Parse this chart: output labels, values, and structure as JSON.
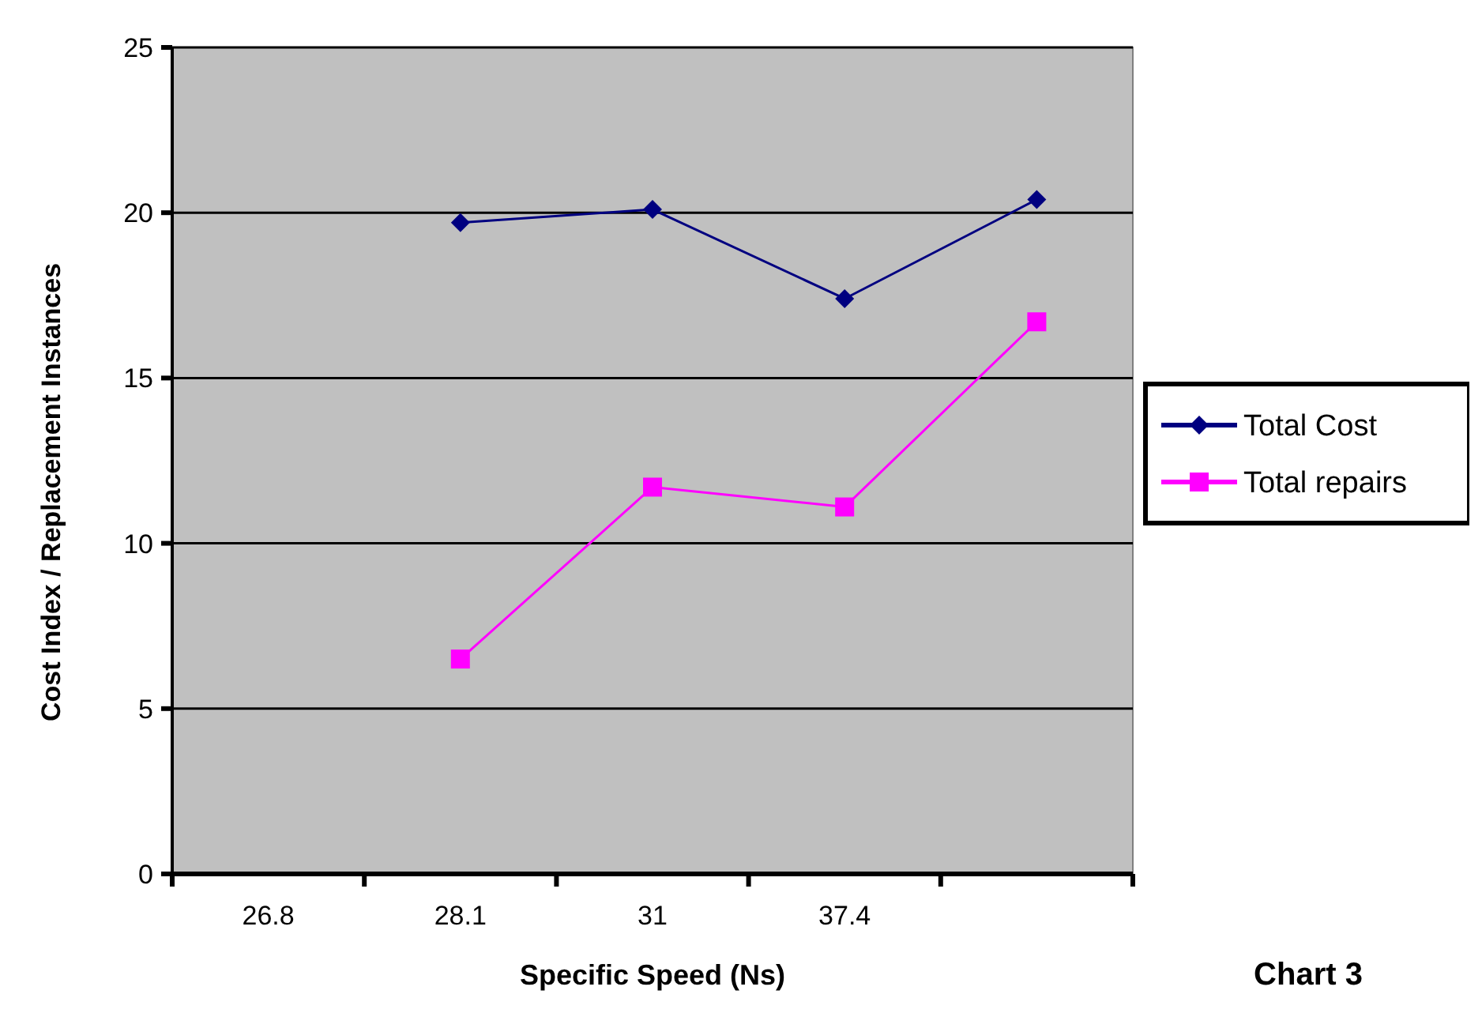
{
  "chart_data": {
    "type": "line",
    "xlabel": "Specific Speed (Ns)",
    "ylabel": "Cost Index / Replacement Instances",
    "categories": [
      "26.8",
      "28.1",
      "31",
      "37.4",
      null
    ],
    "series": [
      {
        "name": "Total Cost",
        "color": "#000080",
        "marker": "diamond",
        "values": [
          null,
          19.7,
          20.1,
          17.4,
          20.4
        ]
      },
      {
        "name": "Total repairs",
        "color": "#ff00ff",
        "marker": "square",
        "values": [
          null,
          6.5,
          11.7,
          11.1,
          16.7
        ]
      }
    ],
    "ylim": [
      0,
      25
    ],
    "yticks": [
      0,
      5,
      10,
      15,
      20,
      25
    ],
    "grid": "y",
    "legend": "right",
    "annotations": [
      "Chart 3"
    ]
  }
}
